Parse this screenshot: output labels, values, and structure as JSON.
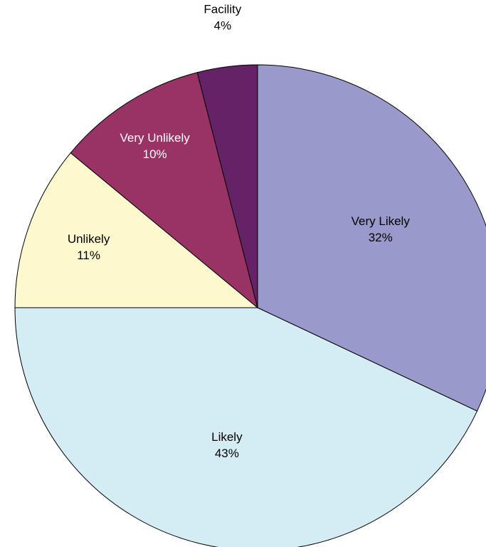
{
  "chart_data": {
    "type": "pie",
    "categories": [
      "Very Likely",
      "Likely",
      "Unlikely",
      "Very Unlikely",
      "Already Use City Facility"
    ],
    "values": [
      32,
      43,
      11,
      10,
      4
    ],
    "value_labels": [
      "32%",
      "43%",
      "11%",
      "10%",
      "4%"
    ],
    "colors": [
      "#9999cc",
      "#d4ecf3",
      "#fdf8cd",
      "#993366",
      "#662266"
    ]
  }
}
